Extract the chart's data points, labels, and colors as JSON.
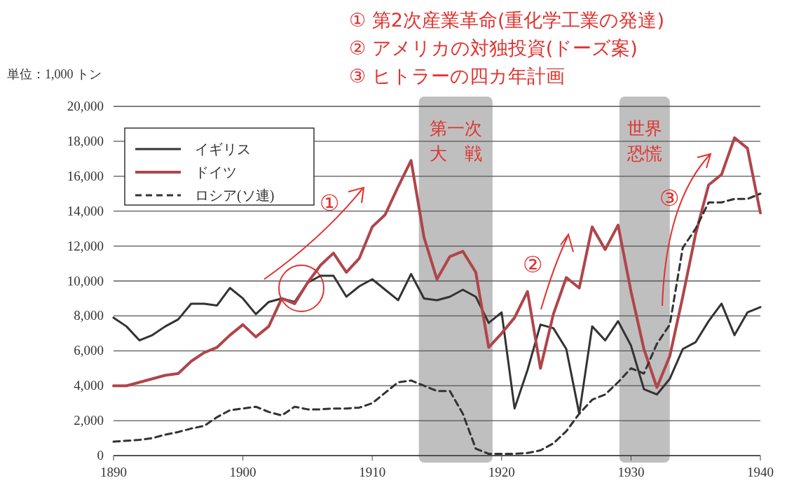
{
  "chart_data": {
    "type": "line",
    "ylabel": "単位：1,000 トン",
    "annotations": [
      "① 第2次産業革命(重化学工業の発達)",
      "② アメリカの対独投資(ドーズ案)",
      "③ ヒトラーの四カ年計画",
      "①",
      "②",
      "③"
    ],
    "x": [
      1890,
      1891,
      1892,
      1893,
      1894,
      1895,
      1896,
      1897,
      1898,
      1899,
      1900,
      1901,
      1902,
      1903,
      1904,
      1905,
      1906,
      1907,
      1908,
      1909,
      1910,
      1911,
      1912,
      1913,
      1914,
      1915,
      1916,
      1917,
      1918,
      1919,
      1920,
      1921,
      1922,
      1923,
      1924,
      1925,
      1926,
      1927,
      1928,
      1929,
      1930,
      1931,
      1932,
      1933,
      1934,
      1935,
      1936,
      1937,
      1938,
      1939,
      1940
    ],
    "series": [
      {
        "name": "イギリス",
        "color": "#333333",
        "line_style": "solid",
        "values": [
          7900,
          7400,
          6600,
          6900,
          7400,
          7800,
          8700,
          8700,
          8600,
          9600,
          9000,
          8100,
          8800,
          9000,
          8800,
          9900,
          10300,
          10300,
          9100,
          9700,
          10100,
          9500,
          8900,
          10400,
          9000,
          8900,
          9100,
          9500,
          9100,
          7600,
          8200,
          2700,
          4900,
          7500,
          7300,
          6100,
          2400,
          7400,
          6600,
          7700,
          6300,
          3800,
          3500,
          4400,
          6100,
          6500,
          7700,
          8700,
          6900,
          8200,
          8500
        ]
      },
      {
        "name": "ドイツ",
        "color": "#b0454a",
        "line_style": "solid",
        "values": [
          4000,
          4000,
          4200,
          4400,
          4600,
          4700,
          5400,
          5900,
          6200,
          6900,
          7500,
          6800,
          7400,
          9000,
          8700,
          9900,
          10900,
          11600,
          10500,
          11300,
          13100,
          13800,
          15400,
          16900,
          12500,
          10100,
          11400,
          11700,
          10500,
          6200,
          7000,
          7900,
          9400,
          5000,
          8100,
          10200,
          9600,
          13100,
          11800,
          13200,
          9400,
          6100,
          3900,
          5700,
          9100,
          12700,
          15500,
          16100,
          18200,
          17600,
          13900
        ]
      },
      {
        "name": "ロシア(ソ連)",
        "color": "#333333",
        "line_style": "dashed",
        "values": [
          800,
          850,
          900,
          1000,
          1200,
          1350,
          1550,
          1700,
          2200,
          2600,
          2700,
          2800,
          2500,
          2300,
          2800,
          2650,
          2650,
          2700,
          2700,
          2750,
          3000,
          3600,
          4200,
          4300,
          4000,
          3700,
          3700,
          2400,
          400,
          100,
          100,
          100,
          150,
          300,
          700,
          1400,
          2400,
          3200,
          3500,
          4200,
          5000,
          4700,
          6400,
          7500,
          11900,
          13000,
          14500,
          14500,
          14700,
          14700,
          15000
        ]
      }
    ],
    "xlim": [
      1890,
      1940
    ],
    "xticks": [
      1890,
      1900,
      1910,
      1920,
      1930,
      1940
    ],
    "ylim": [
      0,
      20000
    ],
    "yticks": [
      {
        "value": 0,
        "label": "0"
      },
      {
        "value": 2000,
        "label": "2,000"
      },
      {
        "value": 4000,
        "label": "4,000"
      },
      {
        "value": 6000,
        "label": "6,000"
      },
      {
        "value": 8000,
        "label": "8,000"
      },
      {
        "value": 10000,
        "label": "10,000"
      },
      {
        "value": 12000,
        "label": "12,000"
      },
      {
        "value": 14000,
        "label": "14,000"
      },
      {
        "value": 16000,
        "label": "16,000"
      },
      {
        "value": 18000,
        "label": "18,000"
      },
      {
        "value": 20000,
        "label": "20,000"
      }
    ],
    "bands": [
      {
        "axis": "x",
        "from": 1913.6,
        "to": 1919.3,
        "label": "第一次大戦",
        "color": "#b4b4b4"
      },
      {
        "axis": "x",
        "from": 1929.1,
        "to": 1933,
        "label": "世界恐慌",
        "color": "#b4b4b4"
      }
    ],
    "grid": "y",
    "legend": "top left",
    "marker": "none"
  }
}
